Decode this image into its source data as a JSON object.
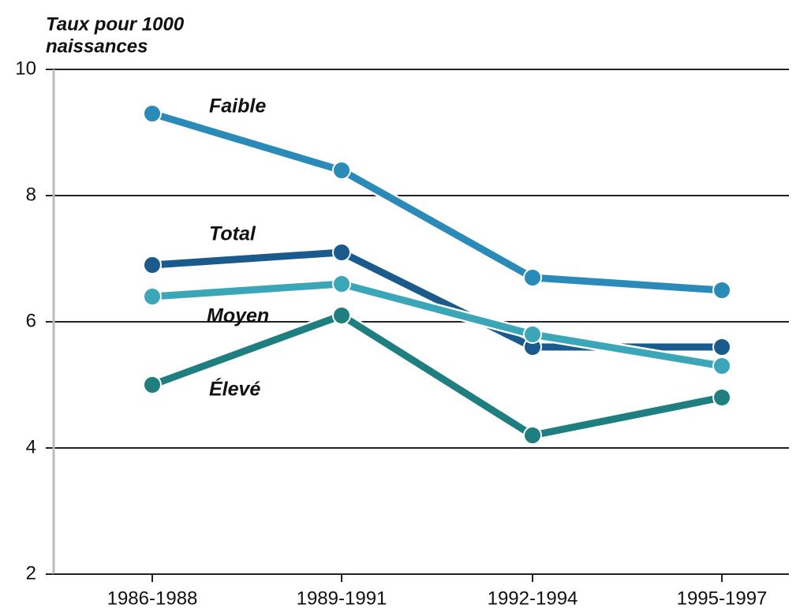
{
  "chart_data": {
    "type": "line",
    "y_label": [
      "Taux pour 1000",
      "naissances"
    ],
    "categories": [
      "1986-1988",
      "1989-1991",
      "1992-1994",
      "1995-1997"
    ],
    "series": [
      {
        "name": "Faible",
        "color": "#2a8ab8",
        "values": [
          9.3,
          8.4,
          6.7,
          6.5
        ]
      },
      {
        "name": "Total",
        "color": "#1a5a8c",
        "values": [
          6.9,
          7.1,
          5.6,
          5.6
        ]
      },
      {
        "name": "Moyen",
        "color": "#3aa6b8",
        "values": [
          6.4,
          6.6,
          5.8,
          5.3
        ]
      },
      {
        "name": "Élevé",
        "color": "#1f7f80",
        "values": [
          5.0,
          6.1,
          4.2,
          4.8
        ]
      }
    ],
    "ylim": [
      2,
      10
    ],
    "yticks": [
      2,
      4,
      6,
      8,
      10
    ],
    "grid": true
  }
}
